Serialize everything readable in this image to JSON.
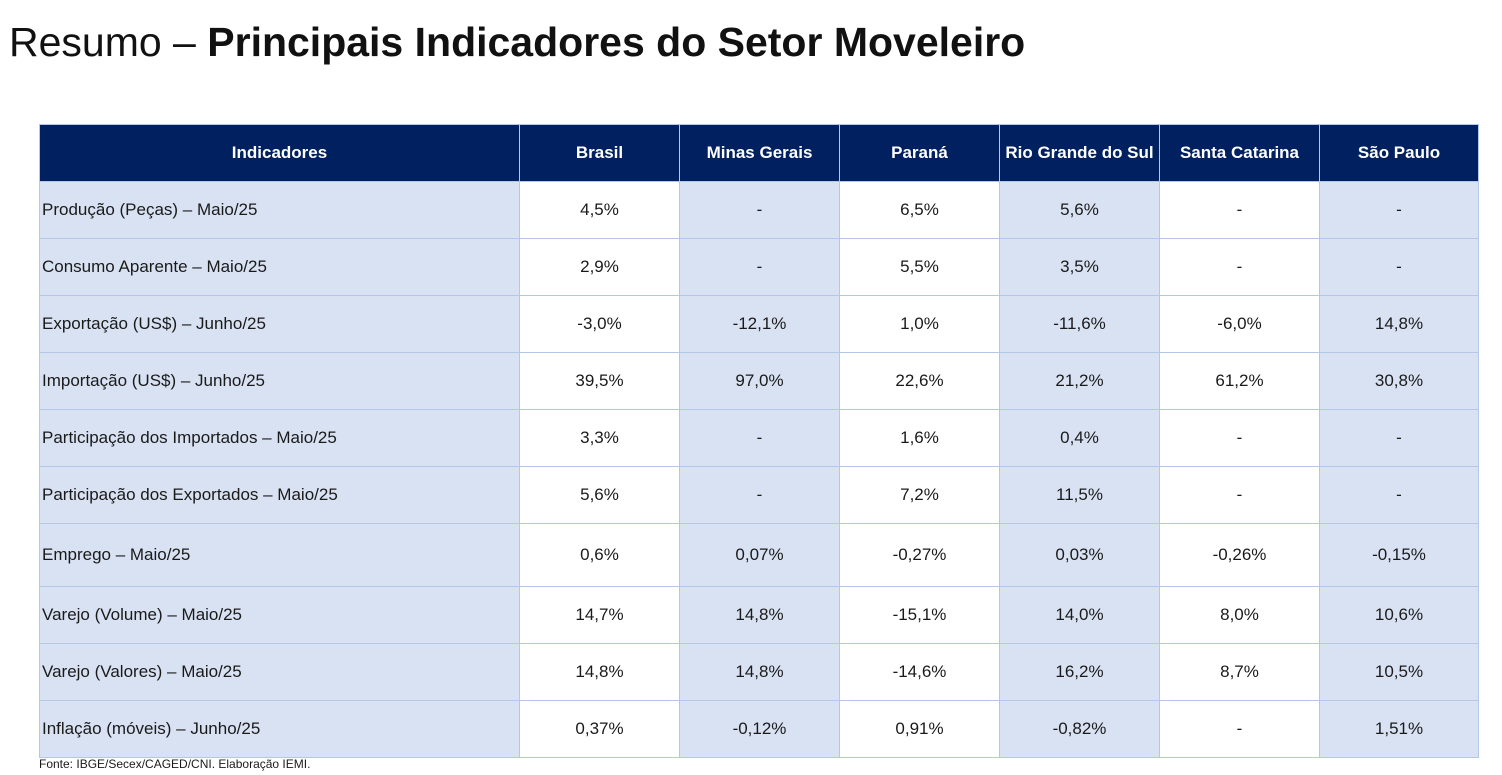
{
  "title": {
    "prefix": "Resumo – ",
    "emphasis": "Principais Indicadores do Setor Moveleiro"
  },
  "table": {
    "headers": [
      "Indicadores",
      "Brasil",
      "Minas Gerais",
      "Paraná",
      "Rio Grande do Sul",
      "Santa Catarina",
      "São Paulo"
    ],
    "rows": [
      {
        "label": "Produção (Peças) – Maio/25",
        "values": [
          "4,5%",
          "-",
          "6,5%",
          "5,6%",
          "-",
          "-"
        ]
      },
      {
        "label": "Consumo Aparente – Maio/25",
        "values": [
          "2,9%",
          "-",
          "5,5%",
          "3,5%",
          "-",
          "-"
        ]
      },
      {
        "label": "Exportação (US$) – Junho/25",
        "values": [
          "-3,0%",
          "-12,1%",
          "1,0%",
          "-11,6%",
          "-6,0%",
          "14,8%"
        ]
      },
      {
        "label": "Importação (US$) – Junho/25",
        "values": [
          "39,5%",
          "97,0%",
          "22,6%",
          "21,2%",
          "61,2%",
          "30,8%"
        ]
      },
      {
        "label": "Participação dos Importados – Maio/25",
        "values": [
          "3,3%",
          "-",
          "1,6%",
          "0,4%",
          "-",
          "-"
        ]
      },
      {
        "label": "Participação dos Exportados – Maio/25",
        "values": [
          "5,6%",
          "-",
          "7,2%",
          "11,5%",
          "-",
          "-"
        ]
      },
      {
        "label": "Emprego – Maio/25",
        "values": [
          "0,6%",
          "0,07%",
          "-0,27%",
          "0,03%",
          "-0,26%",
          "-0,15%"
        ]
      },
      {
        "label": "Varejo (Volume) – Maio/25",
        "values": [
          "14,7%",
          "14,8%",
          "-15,1%",
          "14,0%",
          "8,0%",
          "10,6%"
        ]
      },
      {
        "label": "Varejo (Valores) – Maio/25",
        "values": [
          "14,8%",
          "14,8%",
          "-14,6%",
          "16,2%",
          "8,7%",
          "10,5%"
        ]
      },
      {
        "label": "Inflação (móveis)  – Junho/25",
        "values": [
          "0,37%",
          "-0,12%",
          "0,91%",
          "-0,82%",
          "-",
          "1,51%"
        ]
      }
    ]
  },
  "source": "Fonte: IBGE/Secex/CAGED/CNI. Elaboração IEMI.",
  "colors": {
    "header_bg": "#002060",
    "shade": "#d9e2f3",
    "border": "#b4c7e7"
  }
}
